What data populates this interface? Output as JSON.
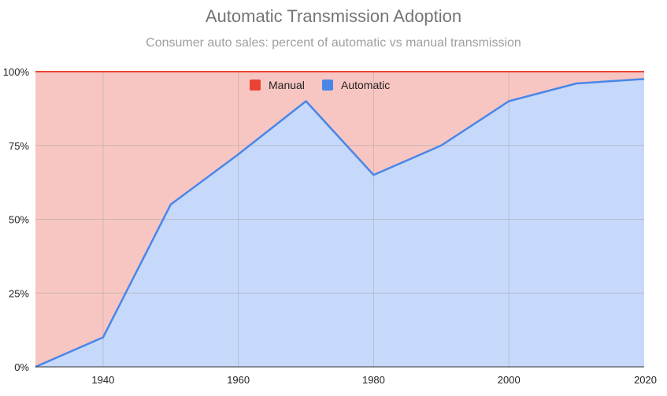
{
  "chart_data": {
    "type": "area",
    "stacked": true,
    "title": "Automatic Transmission Adoption",
    "subtitle": "Consumer auto sales: percent of automatic vs manual transmission",
    "xlabel": "",
    "ylabel": "",
    "x": [
      1930,
      1940,
      1950,
      1960,
      1970,
      1980,
      1990,
      2000,
      2010,
      2020
    ],
    "xlim": [
      1930,
      2020
    ],
    "ylim": [
      0,
      100
    ],
    "x_ticks": [
      "1940",
      "1960",
      "1980",
      "2000",
      "2020"
    ],
    "y_ticks": [
      "0%",
      "25%",
      "50%",
      "75%",
      "100%"
    ],
    "grid": true,
    "legend_position": "top",
    "series": [
      {
        "name": "Manual",
        "color": "#ea4335",
        "fill": "#f8c6c2",
        "values": [
          100,
          90,
          45,
          28,
          10,
          35,
          25,
          10,
          4,
          2.5
        ]
      },
      {
        "name": "Automatic",
        "color": "#4a86e8",
        "fill": "#c6d9fb",
        "values": [
          0,
          10,
          55,
          72,
          90,
          65,
          75,
          90,
          96,
          97.5
        ]
      }
    ]
  }
}
